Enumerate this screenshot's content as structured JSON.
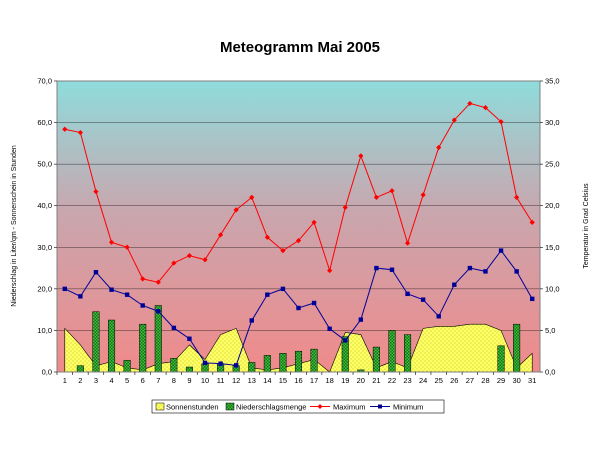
{
  "chart_data": {
    "type": "combo",
    "title": "Meteogramm Mai 2005",
    "ylabel_left": "Niederschlag in Liter/qm - Sonnenschein in Stunden",
    "ylabel_right": "Temperatur in Grad Celsius",
    "x": [
      1,
      2,
      3,
      4,
      5,
      6,
      7,
      8,
      9,
      10,
      11,
      12,
      13,
      14,
      15,
      16,
      17,
      18,
      19,
      20,
      21,
      22,
      23,
      24,
      25,
      26,
      27,
      28,
      29,
      30,
      31
    ],
    "ylim_left": [
      0,
      70
    ],
    "ylim_right": [
      0,
      35
    ],
    "yticks_left": [
      "0,0",
      "10,0",
      "20,0",
      "30,0",
      "40,0",
      "50,0",
      "60,0",
      "70,0"
    ],
    "yticks_right": [
      "0,0",
      "5,0",
      "10,0",
      "15,0",
      "20,0",
      "25,0",
      "30,0",
      "35,0"
    ],
    "grid": true,
    "legend_position": "bottom",
    "series": [
      {
        "name": "Sonnenstunden",
        "kind": "area",
        "axis": "left",
        "color": "#ffff66",
        "values": [
          10.5,
          6.5,
          1.5,
          2.5,
          1.0,
          0.5,
          2.0,
          2.5,
          6.5,
          3.0,
          9.0,
          10.5,
          1.0,
          0.5,
          1.0,
          2.0,
          3.0,
          0.0,
          9.5,
          9.0,
          1.0,
          2.5,
          1.0,
          10.5,
          11.0,
          11.0,
          11.5,
          11.5,
          10.0,
          1.0,
          4.5
        ]
      },
      {
        "name": "Niederschlagsmenge",
        "kind": "bar",
        "axis": "left",
        "color": "#33aa33",
        "values": [
          0.0,
          1.5,
          14.5,
          12.5,
          2.8,
          11.5,
          16.0,
          3.3,
          1.2,
          2.0,
          2.0,
          1.5,
          2.3,
          4.0,
          4.5,
          5.0,
          5.5,
          0.0,
          8.5,
          0.5,
          6.0,
          10.0,
          9.0,
          0.0,
          0.0,
          0.0,
          0.0,
          0.0,
          6.3,
          11.5,
          0.0
        ]
      },
      {
        "name": "Maximum",
        "kind": "line",
        "axis": "right",
        "color": "#ff0000",
        "marker": "diamond",
        "values": [
          29.2,
          28.8,
          21.7,
          15.6,
          15.0,
          11.2,
          10.8,
          13.1,
          14.0,
          13.5,
          16.5,
          19.5,
          21.0,
          16.2,
          14.6,
          15.8,
          18.0,
          12.2,
          19.8,
          26.0,
          21.0,
          21.8,
          15.5,
          21.3,
          27.0,
          30.3,
          32.3,
          31.8,
          30.1,
          21.0,
          18.0
        ]
      },
      {
        "name": "Minimum",
        "kind": "line",
        "axis": "right",
        "color": "#000099",
        "marker": "square",
        "values": [
          10.0,
          9.1,
          12.0,
          9.9,
          9.3,
          8.0,
          7.3,
          5.3,
          4.0,
          1.1,
          1.0,
          0.8,
          6.2,
          9.3,
          10.0,
          7.7,
          8.3,
          5.2,
          3.8,
          6.3,
          12.5,
          12.3,
          9.4,
          8.7,
          6.7,
          10.5,
          12.5,
          12.1,
          14.6,
          12.1,
          8.8
        ]
      }
    ]
  }
}
